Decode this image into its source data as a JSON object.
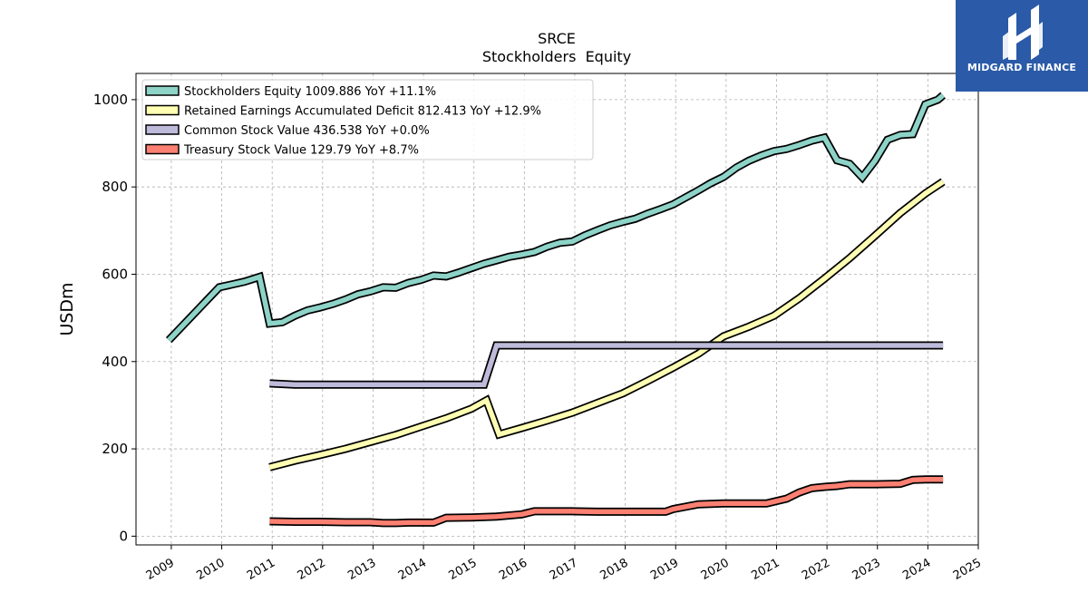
{
  "logo": {
    "text": "MIDGARD FINANCE",
    "background": "#2a5aa8"
  },
  "chart_data": {
    "type": "line",
    "title": "SRCE",
    "subtitle": "Stockholders  Equity",
    "ylabel": "USDm",
    "xlabel": "",
    "xlim": [
      2008.3,
      2025.0
    ],
    "ylim": [
      -20,
      1060
    ],
    "yticks": [
      0,
      200,
      400,
      600,
      800,
      1000
    ],
    "xticks": [
      2009,
      2010,
      2011,
      2012,
      2013,
      2014,
      2015,
      2016,
      2017,
      2018,
      2019,
      2020,
      2021,
      2022,
      2023,
      2024,
      2025
    ],
    "grid": true,
    "legend_position": "top-left",
    "series": [
      {
        "name": "Stockholders Equity  1009.886 YoY +11.1%",
        "color": "#8dd3c7",
        "points": [
          [
            2008.95,
            449
          ],
          [
            2009.95,
            570
          ],
          [
            2010.45,
            583
          ],
          [
            2010.75,
            594
          ],
          [
            2010.95,
            487
          ],
          [
            2011.2,
            490
          ],
          [
            2011.45,
            505
          ],
          [
            2011.7,
            517
          ],
          [
            2011.95,
            524
          ],
          [
            2012.2,
            532
          ],
          [
            2012.45,
            542
          ],
          [
            2012.7,
            554
          ],
          [
            2012.95,
            561
          ],
          [
            2013.2,
            570
          ],
          [
            2013.45,
            569
          ],
          [
            2013.7,
            580
          ],
          [
            2013.95,
            587
          ],
          [
            2014.2,
            597
          ],
          [
            2014.45,
            595
          ],
          [
            2014.7,
            604
          ],
          [
            2014.95,
            614
          ],
          [
            2015.2,
            624
          ],
          [
            2015.45,
            632
          ],
          [
            2015.7,
            640
          ],
          [
            2015.95,
            645
          ],
          [
            2016.2,
            651
          ],
          [
            2016.45,
            663
          ],
          [
            2016.7,
            672
          ],
          [
            2016.95,
            675
          ],
          [
            2017.2,
            689
          ],
          [
            2017.45,
            701
          ],
          [
            2017.7,
            712
          ],
          [
            2017.95,
            720
          ],
          [
            2018.2,
            727
          ],
          [
            2018.45,
            739
          ],
          [
            2018.7,
            749
          ],
          [
            2018.95,
            760
          ],
          [
            2019.2,
            776
          ],
          [
            2019.45,
            792
          ],
          [
            2019.7,
            809
          ],
          [
            2019.95,
            823
          ],
          [
            2020.2,
            844
          ],
          [
            2020.45,
            860
          ],
          [
            2020.7,
            872
          ],
          [
            2020.95,
            882
          ],
          [
            2021.2,
            887
          ],
          [
            2021.45,
            896
          ],
          [
            2021.7,
            906
          ],
          [
            2021.95,
            913
          ],
          [
            2022.2,
            861
          ],
          [
            2022.45,
            853
          ],
          [
            2022.7,
            822
          ],
          [
            2022.95,
            860
          ],
          [
            2023.2,
            908
          ],
          [
            2023.45,
            919
          ],
          [
            2023.7,
            921
          ],
          [
            2023.95,
            989
          ],
          [
            2024.2,
            1000
          ],
          [
            2024.3,
            1010
          ]
        ]
      },
      {
        "name": "Retained Earnings Accumulated Deficit  812.413 YoY +12.9%",
        "color": "#ffffb3",
        "points": [
          [
            2010.95,
            158
          ],
          [
            2011.45,
            173
          ],
          [
            2011.95,
            186
          ],
          [
            2012.45,
            200
          ],
          [
            2012.95,
            216
          ],
          [
            2013.45,
            232
          ],
          [
            2013.95,
            251
          ],
          [
            2014.45,
            270
          ],
          [
            2014.95,
            292
          ],
          [
            2015.25,
            311
          ],
          [
            2015.5,
            233
          ],
          [
            2015.95,
            248
          ],
          [
            2016.45,
            265
          ],
          [
            2016.95,
            283
          ],
          [
            2017.45,
            305
          ],
          [
            2017.95,
            327
          ],
          [
            2018.45,
            356
          ],
          [
            2018.95,
            386
          ],
          [
            2019.45,
            418
          ],
          [
            2019.95,
            458
          ],
          [
            2020.45,
            480
          ],
          [
            2020.95,
            505
          ],
          [
            2021.45,
            545
          ],
          [
            2021.95,
            590
          ],
          [
            2022.45,
            637
          ],
          [
            2022.95,
            688
          ],
          [
            2023.45,
            740
          ],
          [
            2023.95,
            785
          ],
          [
            2024.3,
            812
          ]
        ]
      },
      {
        "name": "Common Stock Value  436.538 YoY +0.0%",
        "color": "#bebada",
        "points": [
          [
            2010.95,
            350
          ],
          [
            2011.45,
            347
          ],
          [
            2015.2,
            347
          ],
          [
            2015.45,
            437
          ],
          [
            2024.3,
            437
          ]
        ]
      },
      {
        "name": "Treasury Stock Value  129.79 YoY +8.7%",
        "color": "#fb8072",
        "points": [
          [
            2010.95,
            34
          ],
          [
            2011.45,
            33
          ],
          [
            2011.95,
            33
          ],
          [
            2012.45,
            32
          ],
          [
            2012.95,
            32
          ],
          [
            2013.2,
            30
          ],
          [
            2013.45,
            30
          ],
          [
            2013.7,
            31
          ],
          [
            2014.2,
            31
          ],
          [
            2014.45,
            42
          ],
          [
            2014.95,
            43
          ],
          [
            2015.45,
            45
          ],
          [
            2015.95,
            50
          ],
          [
            2016.2,
            57
          ],
          [
            2016.45,
            57
          ],
          [
            2016.95,
            57
          ],
          [
            2017.45,
            56
          ],
          [
            2017.95,
            56
          ],
          [
            2018.45,
            56
          ],
          [
            2018.8,
            56
          ],
          [
            2018.95,
            62
          ],
          [
            2019.45,
            73
          ],
          [
            2019.95,
            75
          ],
          [
            2020.45,
            75
          ],
          [
            2020.8,
            75
          ],
          [
            2021.2,
            86
          ],
          [
            2021.45,
            100
          ],
          [
            2021.7,
            110
          ],
          [
            2021.95,
            113
          ],
          [
            2022.2,
            115
          ],
          [
            2022.45,
            119
          ],
          [
            2022.95,
            119
          ],
          [
            2023.45,
            120
          ],
          [
            2023.7,
            129
          ],
          [
            2023.95,
            130
          ],
          [
            2024.3,
            130
          ]
        ]
      }
    ]
  }
}
